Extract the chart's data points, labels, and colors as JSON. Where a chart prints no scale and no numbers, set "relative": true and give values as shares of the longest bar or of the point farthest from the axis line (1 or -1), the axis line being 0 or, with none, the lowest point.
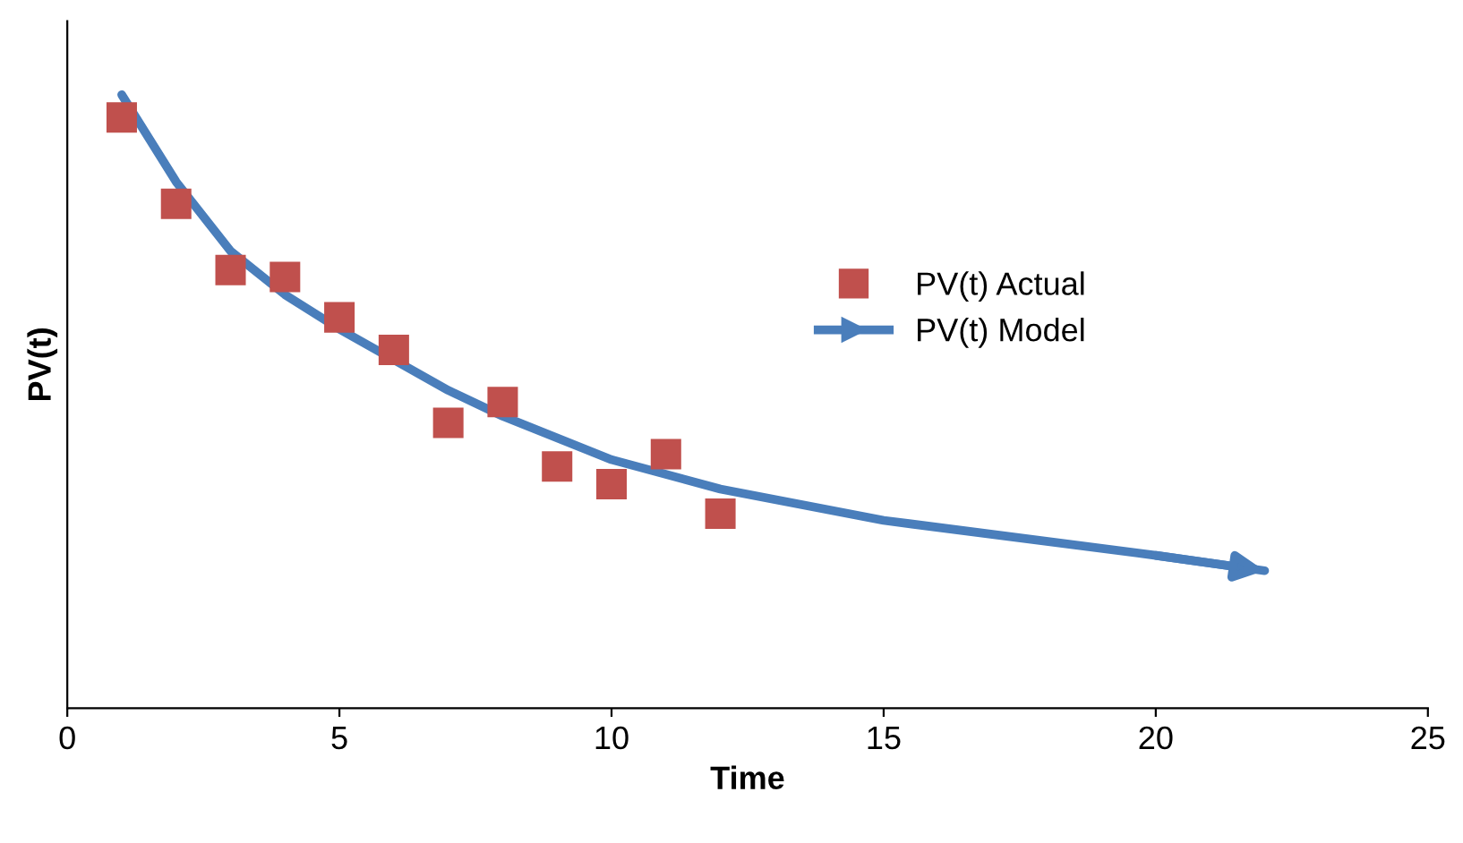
{
  "chart_data": {
    "type": "scatter",
    "xlabel": "Time",
    "ylabel": "PV(t)",
    "relative": true,
    "xlim": [
      0,
      25
    ],
    "xticks": [
      0,
      5,
      10,
      15,
      20,
      25
    ],
    "grid": false,
    "legend": "right",
    "tick_labels": "x",
    "series": [
      {
        "name": "PV(t) Actual",
        "type": "scatter",
        "marker": "square",
        "color": "#c0504d",
        "x": [
          1,
          2,
          3,
          4,
          5,
          6,
          7,
          8,
          9,
          10,
          11,
          12
        ],
        "values": [
          0.963,
          0.822,
          0.714,
          0.703,
          0.637,
          0.584,
          0.465,
          0.499,
          0.394,
          0.365,
          0.414,
          0.317
        ]
      },
      {
        "name": "PV(t) Model",
        "type": "line",
        "marker": "none",
        "line_style": "solid",
        "color": "#4a7ebb",
        "x": [
          1,
          2,
          3,
          4,
          5,
          7,
          8,
          10,
          12,
          15,
          20,
          22
        ],
        "values": [
          1,
          0.858,
          0.745,
          0.674,
          0.618,
          0.518,
          0.476,
          0.405,
          0.357,
          0.306,
          0.249,
          0.224
        ]
      }
    ]
  }
}
